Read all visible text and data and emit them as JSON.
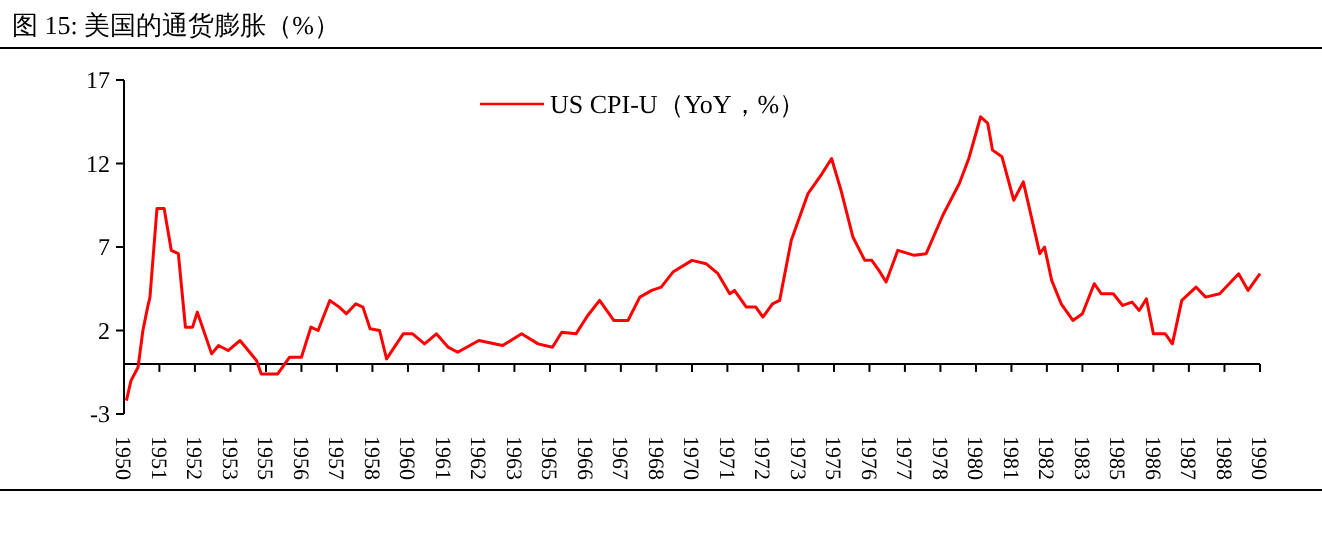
{
  "chart_data": {
    "type": "line",
    "title": "图 15: 美国的通货膨胀（%）",
    "xlim": [
      "1950-01",
      "1990-01"
    ],
    "xticks": [
      {
        "value": "1950-01",
        "label": "1950"
      },
      {
        "value": "1951-04",
        "label": "1951"
      },
      {
        "value": "1952-07",
        "label": "1952"
      },
      {
        "value": "1953-10",
        "label": "1953"
      },
      {
        "value": "1955-01",
        "label": "1955"
      },
      {
        "value": "1956-04",
        "label": "1956"
      },
      {
        "value": "1957-07",
        "label": "1957"
      },
      {
        "value": "1958-10",
        "label": "1958"
      },
      {
        "value": "1960-01",
        "label": "1960"
      },
      {
        "value": "1961-04",
        "label": "1961"
      },
      {
        "value": "1962-07",
        "label": "1962"
      },
      {
        "value": "1963-10",
        "label": "1963"
      },
      {
        "value": "1965-01",
        "label": "1965"
      },
      {
        "value": "1966-04",
        "label": "1966"
      },
      {
        "value": "1967-07",
        "label": "1967"
      },
      {
        "value": "1968-10",
        "label": "1968"
      },
      {
        "value": "1970-01",
        "label": "1970"
      },
      {
        "value": "1971-04",
        "label": "1971"
      },
      {
        "value": "1972-07",
        "label": "1972"
      },
      {
        "value": "1973-10",
        "label": "1973"
      },
      {
        "value": "1975-01",
        "label": "1975"
      },
      {
        "value": "1976-04",
        "label": "1976"
      },
      {
        "value": "1977-07",
        "label": "1977"
      },
      {
        "value": "1978-10",
        "label": "1978"
      },
      {
        "value": "1980-01",
        "label": "1980"
      },
      {
        "value": "1981-04",
        "label": "1981"
      },
      {
        "value": "1982-07",
        "label": "1982"
      },
      {
        "value": "1983-10",
        "label": "1983"
      },
      {
        "value": "1985-01",
        "label": "1985"
      },
      {
        "value": "1986-04",
        "label": "1986"
      },
      {
        "value": "1987-07",
        "label": "1987"
      },
      {
        "value": "1988-10",
        "label": "1988"
      },
      {
        "value": "1990-01",
        "label": "1990"
      }
    ],
    "ylim": [
      -3,
      17
    ],
    "yticks": [
      -3,
      2,
      7,
      12,
      17
    ],
    "legend": "top",
    "grid": false,
    "series": [
      {
        "name": "US CPI-U（YoY，%）",
        "color": "#ff0000",
        "x": [
          "1950-02",
          "1950-04",
          "1950-07",
          "1950-09",
          "1950-11",
          "1950-12",
          "1951-03",
          "1951-06",
          "1951-09",
          "1951-12",
          "1952-03",
          "1952-06",
          "1952-08",
          "1953-02",
          "1953-05",
          "1953-09",
          "1954-02",
          "1954-09",
          "1954-11",
          "1955-06",
          "1955-11",
          "1956-04",
          "1956-08",
          "1956-11",
          "1957-04",
          "1957-08",
          "1957-11",
          "1958-03",
          "1958-06",
          "1958-09",
          "1959-01",
          "1959-04",
          "1959-11",
          "1960-03",
          "1960-08",
          "1961-01",
          "1961-06",
          "1961-10",
          "1962-07",
          "1963-05",
          "1964-01",
          "1964-08",
          "1965-02",
          "1965-06",
          "1965-12",
          "1966-05",
          "1966-10",
          "1967-04",
          "1967-10",
          "1968-03",
          "1968-08",
          "1968-12",
          "1969-05",
          "1970-01",
          "1970-07",
          "1970-12",
          "1971-05",
          "1971-07",
          "1971-12",
          "1972-04",
          "1972-07",
          "1972-11",
          "1973-02",
          "1973-07",
          "1974-02",
          "1974-08",
          "1974-12",
          "1975-04",
          "1975-09",
          "1976-02",
          "1976-05",
          "1976-08",
          "1976-11",
          "1977-04",
          "1977-11",
          "1978-04",
          "1978-11",
          "1979-06",
          "1979-10",
          "1980-03",
          "1980-06",
          "1980-08",
          "1980-12",
          "1981-05",
          "1981-09",
          "1982-04",
          "1982-06",
          "1982-09",
          "1983-01",
          "1983-06",
          "1983-10",
          "1984-03",
          "1984-06",
          "1984-11",
          "1985-03",
          "1985-07",
          "1985-10",
          "1986-01",
          "1986-04",
          "1986-09",
          "1986-12",
          "1987-04",
          "1987-10",
          "1988-02",
          "1988-08",
          "1989-04",
          "1989-08",
          "1990-01"
        ],
        "values": [
          -2.2,
          -1.0,
          -0.2,
          2.0,
          3.4,
          4.0,
          9.3,
          9.3,
          6.8,
          6.6,
          2.2,
          2.2,
          3.1,
          0.6,
          1.1,
          0.8,
          1.4,
          0.2,
          -0.6,
          -0.6,
          0.4,
          0.4,
          2.2,
          2.0,
          3.8,
          3.4,
          3.0,
          3.6,
          3.4,
          2.1,
          2.0,
          0.3,
          1.8,
          1.8,
          1.2,
          1.8,
          1.0,
          0.7,
          1.4,
          1.1,
          1.8,
          1.2,
          1.0,
          1.9,
          1.8,
          2.9,
          3.8,
          2.6,
          2.6,
          4.0,
          4.4,
          4.6,
          5.5,
          6.2,
          6.0,
          5.4,
          4.2,
          4.4,
          3.4,
          3.4,
          2.8,
          3.6,
          3.8,
          7.4,
          10.2,
          11.4,
          12.3,
          10.4,
          7.6,
          6.2,
          6.2,
          5.6,
          4.9,
          6.8,
          6.5,
          6.6,
          8.9,
          10.8,
          12.3,
          14.8,
          14.4,
          12.8,
          12.4,
          9.8,
          10.9,
          6.6,
          7.0,
          5.0,
          3.6,
          2.6,
          3.0,
          4.8,
          4.2,
          4.2,
          3.5,
          3.7,
          3.2,
          3.9,
          1.8,
          1.8,
          1.2,
          3.8,
          4.6,
          4.0,
          4.2,
          5.4,
          4.4,
          5.4
        ]
      }
    ]
  }
}
